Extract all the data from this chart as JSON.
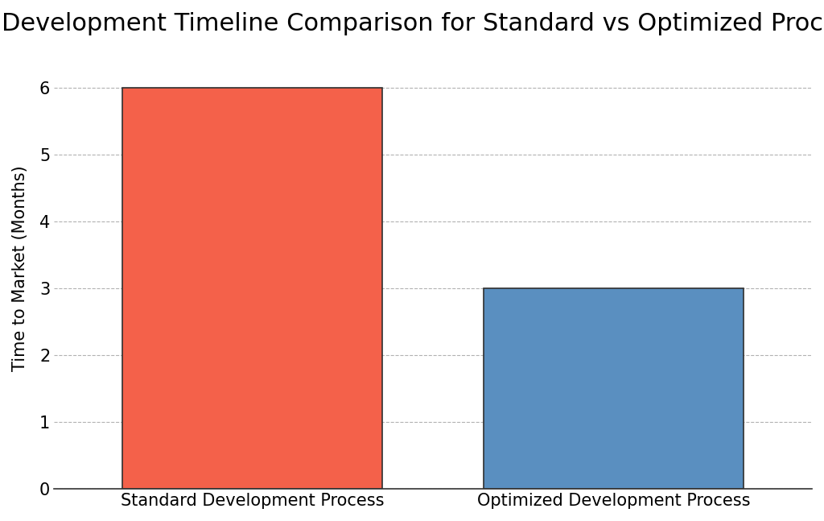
{
  "title": "Development Timeline Comparison for Standard vs Optimized Process",
  "categories": [
    "Standard Development Process",
    "Optimized Development Process"
  ],
  "values": [
    6,
    3
  ],
  "bar_colors": [
    "#F4614A",
    "#5A8FC0"
  ],
  "bar_edge_colors": [
    "#2F2F2F",
    "#2F2F2F"
  ],
  "ylabel": "Time to Market (Months)",
  "ylim": [
    0,
    6.6
  ],
  "yticks": [
    0,
    1,
    2,
    3,
    4,
    5,
    6
  ],
  "title_fontsize": 22,
  "label_fontsize": 15,
  "tick_fontsize": 15,
  "bar_width": 0.72,
  "background_color": "#FFFFFF",
  "grid_color": "#AAAAAA",
  "grid_style": "--",
  "grid_alpha": 0.9
}
